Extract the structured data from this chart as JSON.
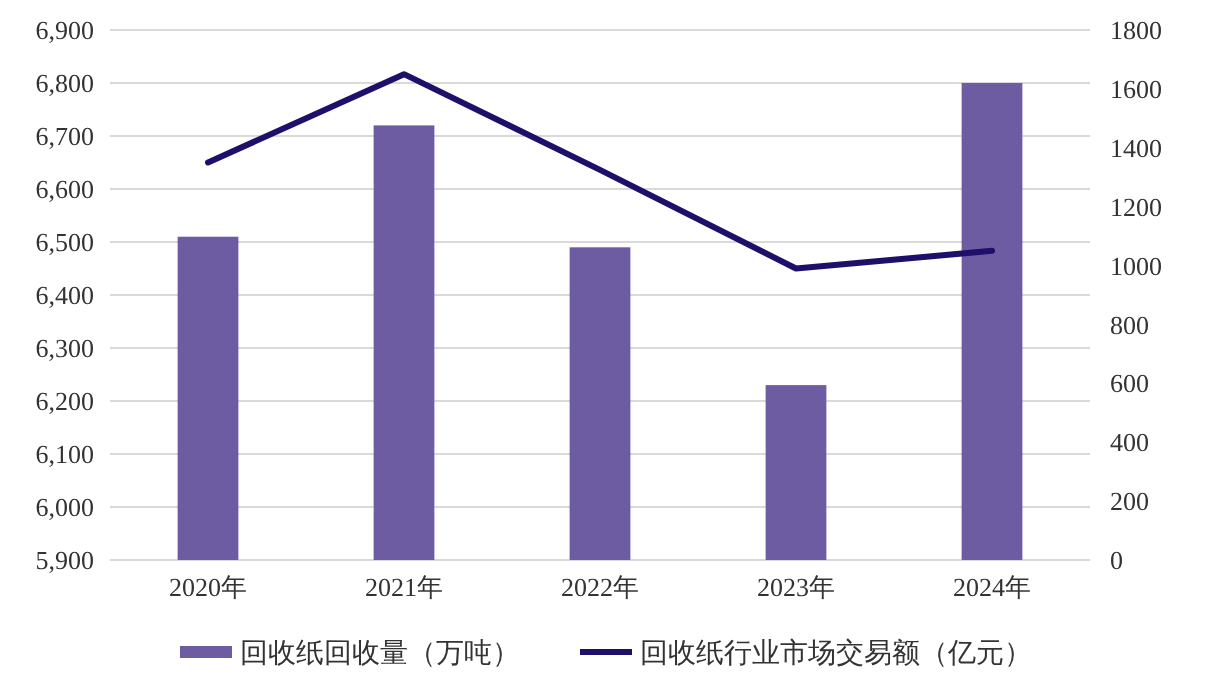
{
  "chart_data": {
    "type": "bar",
    "categories": [
      "2020年",
      "2021年",
      "2022年",
      "2023年",
      "2024年"
    ],
    "series": [
      {
        "name": "回收纸回收量（万吨）",
        "color": "#6e5ca3",
        "values": [
          6510,
          6720,
          6490,
          6230,
          6800
        ]
      },
      {
        "name": "回收纸行业市场交易额（亿元）",
        "type": "line",
        "axis": "y2",
        "color": "#1f0f6b",
        "values": [
          1350,
          1650,
          1325,
          990,
          1050
        ]
      }
    ],
    "ylim": [
      5900,
      6900
    ],
    "yticks": [
      {
        "value": 5900,
        "label": "5,900"
      },
      {
        "value": 6000,
        "label": "6,000"
      },
      {
        "value": 6100,
        "label": "6,100"
      },
      {
        "value": 6200,
        "label": "6,200"
      },
      {
        "value": 6300,
        "label": "6,300"
      },
      {
        "value": 6400,
        "label": "6,400"
      },
      {
        "value": 6500,
        "label": "6,500"
      },
      {
        "value": 6600,
        "label": "6,600"
      },
      {
        "value": 6700,
        "label": "6,700"
      },
      {
        "value": 6800,
        "label": "6,800"
      },
      {
        "value": 6900,
        "label": "6,900"
      }
    ],
    "y2lim": [
      0,
      1800
    ],
    "y2ticks": [
      0,
      200,
      400,
      600,
      800,
      1000,
      1200,
      1400,
      1600,
      1800
    ],
    "grid": "y",
    "legend": "bottom",
    "marker": "none",
    "line_style": "solid"
  }
}
